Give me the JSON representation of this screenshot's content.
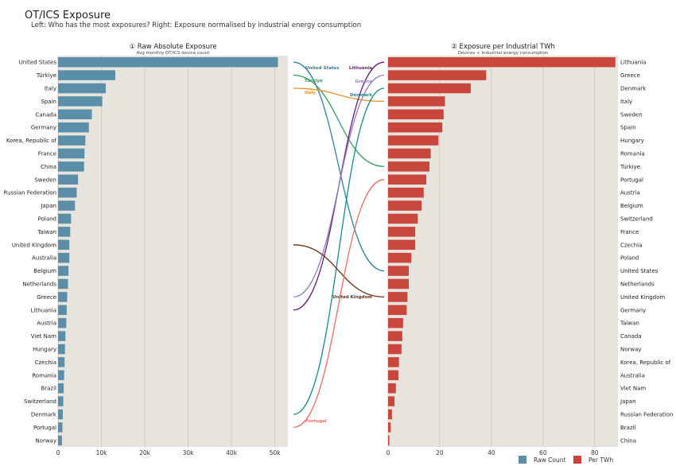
{
  "title": "OT/ICS Exposure",
  "subtitle": "Left: Who has the most exposures?   Right: Exposure normalised by industrial energy consumption",
  "colors": {
    "panel_bg": "#e6e4dc",
    "raw_bar": "#5b8ea8",
    "per_bar": "#c9463d",
    "highlights": {
      "United States": "#2f7ea3",
      "Türkiye": "#2e9e5b",
      "Italy": "#e8922a",
      "Lithuania": "#6a1a7a",
      "Greece": "#8e7bb8",
      "Denmark": "#1b8a8a",
      "United Kingdom": "#6b2e14",
      "Portugal": "#ef6b63"
    }
  },
  "chart_data": [
    {
      "type": "bar",
      "orientation": "horizontal",
      "title": "① Raw Absolute Exposure",
      "subtitle": "Avg monthly OT/ICS device count",
      "xlim": [
        0,
        53000
      ],
      "xticks": [
        0,
        10000,
        20000,
        30000,
        40000,
        50000
      ],
      "xtick_labels": [
        "0",
        "10k",
        "20k",
        "30k",
        "40k",
        "50k"
      ],
      "grid": true,
      "categories": [
        "United States",
        "Türkiye",
        "Italy",
        "Spain",
        "Canada",
        "Germany",
        "Korea, Republic of",
        "France",
        "China",
        "Sweden",
        "Russian Federation",
        "Japan",
        "Poland",
        "Taiwan",
        "United Kingdom",
        "Australia",
        "Belgium",
        "Netherlands",
        "Greece",
        "Lithuania",
        "Austria",
        "Viet Nam",
        "Hungary",
        "Czechia",
        "Romania",
        "Brazil",
        "Switzerland",
        "Denmark",
        "Portugal",
        "Norway"
      ],
      "values": [
        50700,
        13200,
        11000,
        10200,
        7800,
        7100,
        6300,
        6100,
        6000,
        4600,
        4300,
        3900,
        3000,
        2800,
        2600,
        2600,
        2400,
        2300,
        2100,
        2000,
        1900,
        1700,
        1600,
        1500,
        1400,
        1300,
        1200,
        1100,
        1000,
        900
      ]
    },
    {
      "type": "bar",
      "orientation": "horizontal",
      "title": "② Exposure per Industrial TWh",
      "subtitle": "Devices ÷ Industrial energy consumption",
      "xlim": [
        0,
        89
      ],
      "xticks": [
        0,
        20,
        40,
        60,
        80
      ],
      "xtick_labels": [
        "0",
        "20",
        "40",
        "60",
        "80"
      ],
      "grid": true,
      "categories": [
        "Lithuania",
        "Greece",
        "Denmark",
        "Italy",
        "Sweden",
        "Spain",
        "Hungary",
        "Romania",
        "Türkiye",
        "Portugal",
        "Austria",
        "Belgium",
        "Switzerland",
        "France",
        "Czechia",
        "Poland",
        "United States",
        "Netherlands",
        "United Kingdom",
        "Germany",
        "Taiwan",
        "Canada",
        "Norway",
        "Korea, Republic of",
        "Australia",
        "Viet Nam",
        "Japan",
        "Russian Federation",
        "Brazil",
        "China"
      ],
      "values": [
        88,
        38,
        32,
        22,
        21.5,
        21,
        19.5,
        16.5,
        16,
        14.8,
        13.8,
        13,
        11.5,
        10.5,
        10.5,
        9,
        8,
        8,
        7.5,
        7.2,
        5.8,
        5.5,
        5.2,
        4.2,
        4,
        3,
        2.5,
        1.5,
        1,
        0.5
      ]
    }
  ],
  "highlighted_links": [
    "United States",
    "Türkiye",
    "Italy",
    "Lithuania",
    "Greece",
    "Denmark",
    "United Kingdom",
    "Portugal"
  ],
  "legend": [
    {
      "label": "Raw Count",
      "color": "#5b8ea8"
    },
    {
      "label": "Per TWh",
      "color": "#c9463d"
    }
  ]
}
